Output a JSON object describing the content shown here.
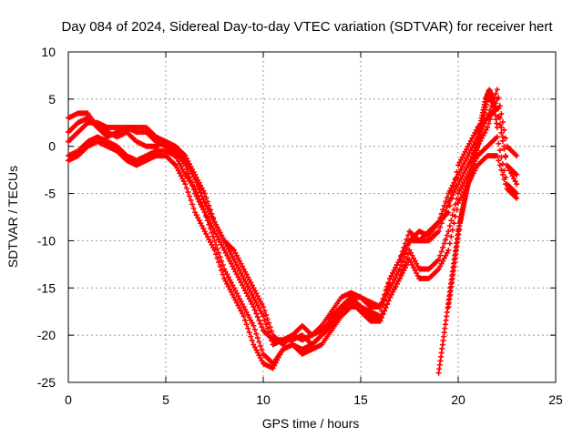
{
  "chart_data": {
    "type": "scatter",
    "title": "Day 084 of 2024, Sidereal Day-to-day VTEC variation (SDTVAR) for receiver hert",
    "xlabel": "GPS time / hours",
    "ylabel": "SDTVAR / TECUs",
    "xlim": [
      0,
      25
    ],
    "ylim": [
      -25,
      10
    ],
    "xticks": [
      0,
      5,
      10,
      15,
      20,
      25
    ],
    "yticks": [
      -25,
      -20,
      -15,
      -10,
      -5,
      0,
      5,
      10
    ],
    "grid": true,
    "marker": "plus",
    "series": [
      {
        "name": "trace-1",
        "color": "#ff0000",
        "x": [
          0,
          0.5,
          1,
          1.5,
          2,
          2.5,
          3,
          3.5,
          4,
          4.5,
          5,
          5.5,
          6,
          6.5,
          7,
          7.5,
          8,
          8.5,
          9,
          9.5,
          10,
          10.5,
          11,
          11.5,
          12,
          12.5,
          13,
          13.5,
          14,
          14.5,
          15,
          15.5,
          16,
          16.5,
          17,
          17.5,
          18,
          18.5,
          19,
          19.5,
          20,
          20.5,
          21,
          21.5,
          22,
          22.5,
          23
        ],
        "y": [
          1.5,
          2.5,
          3.0,
          2.0,
          1.5,
          1.0,
          1.5,
          0.5,
          0,
          0,
          0.5,
          -0.5,
          -2,
          -5,
          -7,
          -9,
          -11,
          -13,
          -15,
          -17,
          -19.5,
          -20.5,
          -20.5,
          -20,
          -20.5,
          -20,
          -19.5,
          -18.5,
          -17,
          -16,
          -17,
          -17.5,
          -18,
          -14,
          -12,
          -9,
          -10,
          -10,
          -9,
          -6,
          -4,
          -2,
          0,
          2,
          5,
          -2,
          -3
        ]
      },
      {
        "name": "trace-2",
        "color": "#ff0000",
        "x": [
          0,
          0.5,
          1,
          1.5,
          2,
          2.5,
          3,
          3.5,
          4,
          4.5,
          5,
          5.5,
          6,
          6.5,
          7,
          7.5,
          8,
          8.5,
          9,
          9.5,
          10,
          10.5,
          11,
          11.5,
          12,
          12.5,
          13,
          13.5,
          14,
          14.5,
          15,
          15.5,
          16,
          16.5,
          17,
          17.5,
          18,
          18.5,
          19,
          19.5,
          20,
          20.5,
          21,
          21.5,
          22,
          22.5,
          23
        ],
        "y": [
          3.0,
          3.5,
          3.5,
          2.0,
          1.0,
          1.5,
          2.0,
          1.5,
          1.5,
          0.5,
          0,
          -0.5,
          -1.5,
          -3.5,
          -6,
          -8,
          -10,
          -12,
          -14,
          -16,
          -18,
          -21,
          -20.5,
          -20.5,
          -20,
          -21,
          -20,
          -18,
          -17,
          -16,
          -16,
          -17,
          -17,
          -15,
          -13,
          -10,
          -9,
          -9.5,
          -8,
          -5,
          -3,
          -1,
          1,
          3,
          4,
          -2,
          -4
        ]
      },
      {
        "name": "trace-3",
        "color": "#ff0000",
        "x": [
          0,
          0.5,
          1,
          1.5,
          2,
          2.5,
          3,
          3.5,
          4,
          4.5,
          5,
          5.5,
          6,
          6.5,
          7,
          7.5,
          8,
          8.5,
          9,
          9.5,
          10,
          10.5,
          11,
          11.5,
          12,
          12.5,
          13,
          13.5,
          14,
          14.5,
          15,
          15.5,
          16,
          16.5,
          17,
          17.5,
          18,
          18.5,
          19,
          19.5,
          20,
          20.5,
          21,
          21.5,
          22,
          22.5,
          23
        ],
        "y": [
          -1.0,
          -0.5,
          0.5,
          1.0,
          0.5,
          0,
          -1,
          -1.5,
          -1,
          -0.5,
          -0.5,
          -1,
          -3,
          -4.5,
          -7,
          -10,
          -13,
          -15,
          -17,
          -19,
          -22,
          -23,
          -21.5,
          -21,
          -22,
          -21.5,
          -21,
          -19.5,
          -18,
          -17,
          -17,
          -18,
          -18.5,
          -16,
          -14,
          -11,
          -13,
          -13,
          -12,
          -9,
          -5,
          -3,
          -1,
          0,
          1,
          -4,
          -5
        ]
      },
      {
        "name": "trace-4",
        "color": "#ff0000",
        "x": [
          0,
          0.5,
          1,
          1.5,
          2,
          2.5,
          3,
          3.5,
          4,
          4.5,
          5,
          5.5,
          6,
          6.5,
          7,
          7.5,
          8,
          8.5,
          9,
          9.5,
          10,
          10.5,
          11,
          11.5,
          12,
          12.5,
          13,
          13.5,
          14,
          14.5,
          15,
          15.5,
          16,
          16.5,
          17,
          17.5,
          18,
          18.5,
          19,
          19.5,
          20,
          20.5,
          21,
          21.5,
          22,
          22.5,
          23
        ],
        "y": [
          -1.5,
          -1.0,
          0,
          0.5,
          0,
          -0.5,
          -1.5,
          -2,
          -1.5,
          -1,
          -1,
          -2,
          -4,
          -7,
          -9,
          -11,
          -14,
          -16,
          -18,
          -21,
          -23,
          -23.5,
          -21.5,
          -21,
          -21.5,
          -21,
          -20,
          -19,
          -17.5,
          -16.5,
          -17.5,
          -18.5,
          -18.5,
          -16,
          -14,
          -12,
          -14,
          -14,
          -13,
          -11,
          -6,
          -4,
          -2,
          -1,
          -1,
          -4.5,
          -5.5
        ]
      },
      {
        "name": "trace-5",
        "color": "#ff0000",
        "x": [
          0,
          0.5,
          1,
          1.5,
          2,
          2.5,
          3,
          3.5,
          4,
          4.5,
          5,
          5.5,
          6,
          6.5,
          7,
          7.5,
          8,
          8.5,
          9,
          9.5,
          10,
          10.5,
          11,
          11.5,
          12,
          12.5,
          13,
          13.5,
          14,
          14.5,
          15,
          15.5,
          16,
          16.5,
          17,
          17.5,
          18,
          18.5,
          19,
          19.5,
          20,
          20.5,
          21,
          21.5,
          22,
          22.5,
          23
        ],
        "y": [
          0.5,
          1.5,
          2.5,
          2.5,
          2.0,
          2.0,
          2.0,
          2.0,
          2.0,
          1.0,
          0.5,
          0,
          -1,
          -3,
          -5,
          -8,
          -10,
          -11,
          -13,
          -15,
          -17,
          -20,
          -21,
          -20,
          -19,
          -20,
          -19,
          -17.5,
          -16,
          -15.5,
          -16,
          -16.5,
          -17,
          -14,
          -12,
          -10,
          -10,
          -9,
          -8,
          -7,
          -2,
          0,
          2,
          3,
          6,
          0,
          -1
        ]
      },
      {
        "name": "trace-6",
        "color": "#ff0000",
        "x": [
          19,
          19.2,
          19.4,
          19.6,
          19.8,
          20,
          20.2,
          20.4,
          20.6,
          20.8,
          21,
          21.2,
          21.4,
          21.6,
          21.8,
          22
        ],
        "y": [
          -24,
          -21,
          -18,
          -15,
          -12,
          -9,
          -7,
          -5,
          -3,
          -1,
          1,
          3,
          5,
          6,
          5,
          2
        ]
      },
      {
        "name": "trace-7",
        "color": "#ff0000",
        "x": [
          19.5,
          19.7,
          19.9,
          20.1,
          20.3,
          20.5,
          20.7,
          20.9,
          21.1,
          21.3,
          21.5,
          21.7,
          21.9
        ],
        "y": [
          -17,
          -14,
          -11,
          -8,
          -6,
          -4,
          -3,
          -1,
          1,
          3,
          5,
          5,
          4
        ]
      }
    ]
  }
}
